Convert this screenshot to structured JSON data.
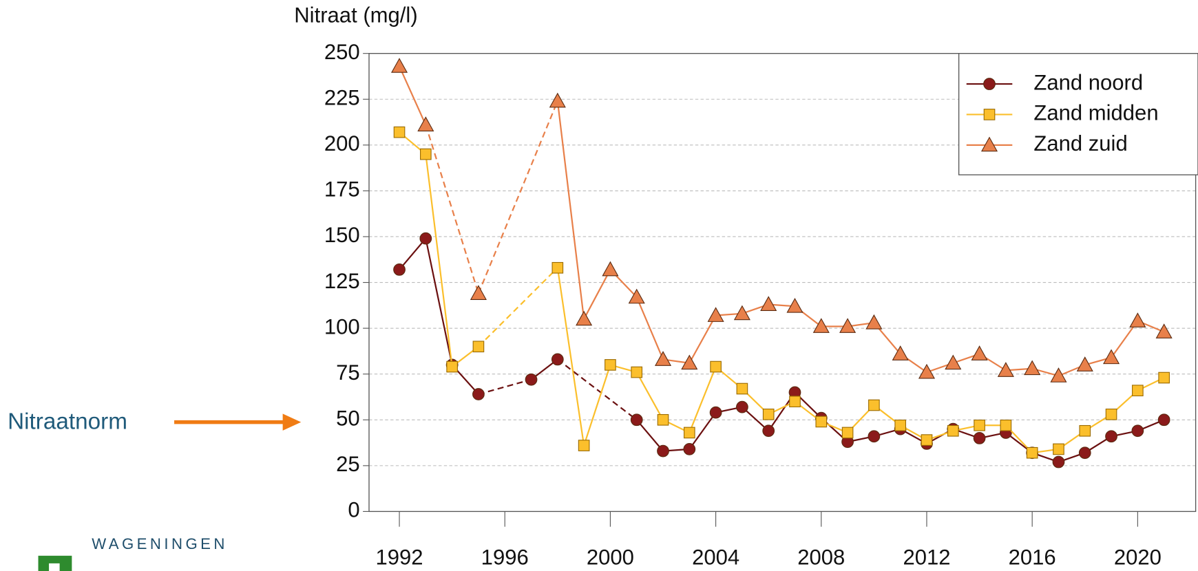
{
  "chart_data": {
    "type": "line",
    "ylabel": "Nitraat (mg/l)",
    "x": [
      1992,
      1993,
      1994,
      1995,
      1996,
      1997,
      1998,
      1999,
      2000,
      2001,
      2002,
      2003,
      2004,
      2005,
      2006,
      2007,
      2008,
      2009,
      2010,
      2011,
      2012,
      2013,
      2014,
      2015,
      2016,
      2017,
      2018,
      2019,
      2020,
      2021
    ],
    "xlim": [
      1990.85,
      2022.2
    ],
    "xticks": [
      1992,
      1996,
      2000,
      2004,
      2008,
      2012,
      2016,
      2020
    ],
    "ylim": [
      0,
      250
    ],
    "yticks": [
      0,
      25,
      50,
      75,
      100,
      125,
      150,
      175,
      200,
      225,
      250
    ],
    "grid": true,
    "legend": "upper right",
    "gap_style": "dashed",
    "series": [
      {
        "name": "Zand noord",
        "color": "#8b1a1a",
        "marker": "circle",
        "values": [
          132,
          149,
          80,
          64,
          null,
          72,
          83,
          null,
          null,
          50,
          33,
          34,
          54,
          57,
          44,
          65,
          51,
          38,
          41,
          45,
          37,
          45,
          40,
          43,
          32,
          27,
          32,
          41,
          44,
          50
        ]
      },
      {
        "name": "Zand midden",
        "color": "#fbbf2c",
        "marker": "square",
        "values": [
          207,
          195,
          79,
          90,
          null,
          null,
          133,
          36,
          80,
          76,
          50,
          43,
          79,
          67,
          53,
          60,
          49,
          43,
          58,
          47,
          39,
          44,
          47,
          47,
          32,
          34,
          44,
          53,
          66,
          73
        ]
      },
      {
        "name": "Zand zuid",
        "color": "#e8804a",
        "marker": "triangle",
        "values": [
          243,
          211,
          null,
          119,
          null,
          null,
          224,
          105,
          132,
          117,
          83,
          81,
          107,
          108,
          113,
          112,
          101,
          101,
          103,
          86,
          76,
          81,
          86,
          77,
          78,
          74,
          80,
          84,
          104,
          98
        ]
      }
    ],
    "annotation": {
      "text": "Nitraatnorm",
      "y": 50
    }
  },
  "logo": "WAGENINGEN"
}
